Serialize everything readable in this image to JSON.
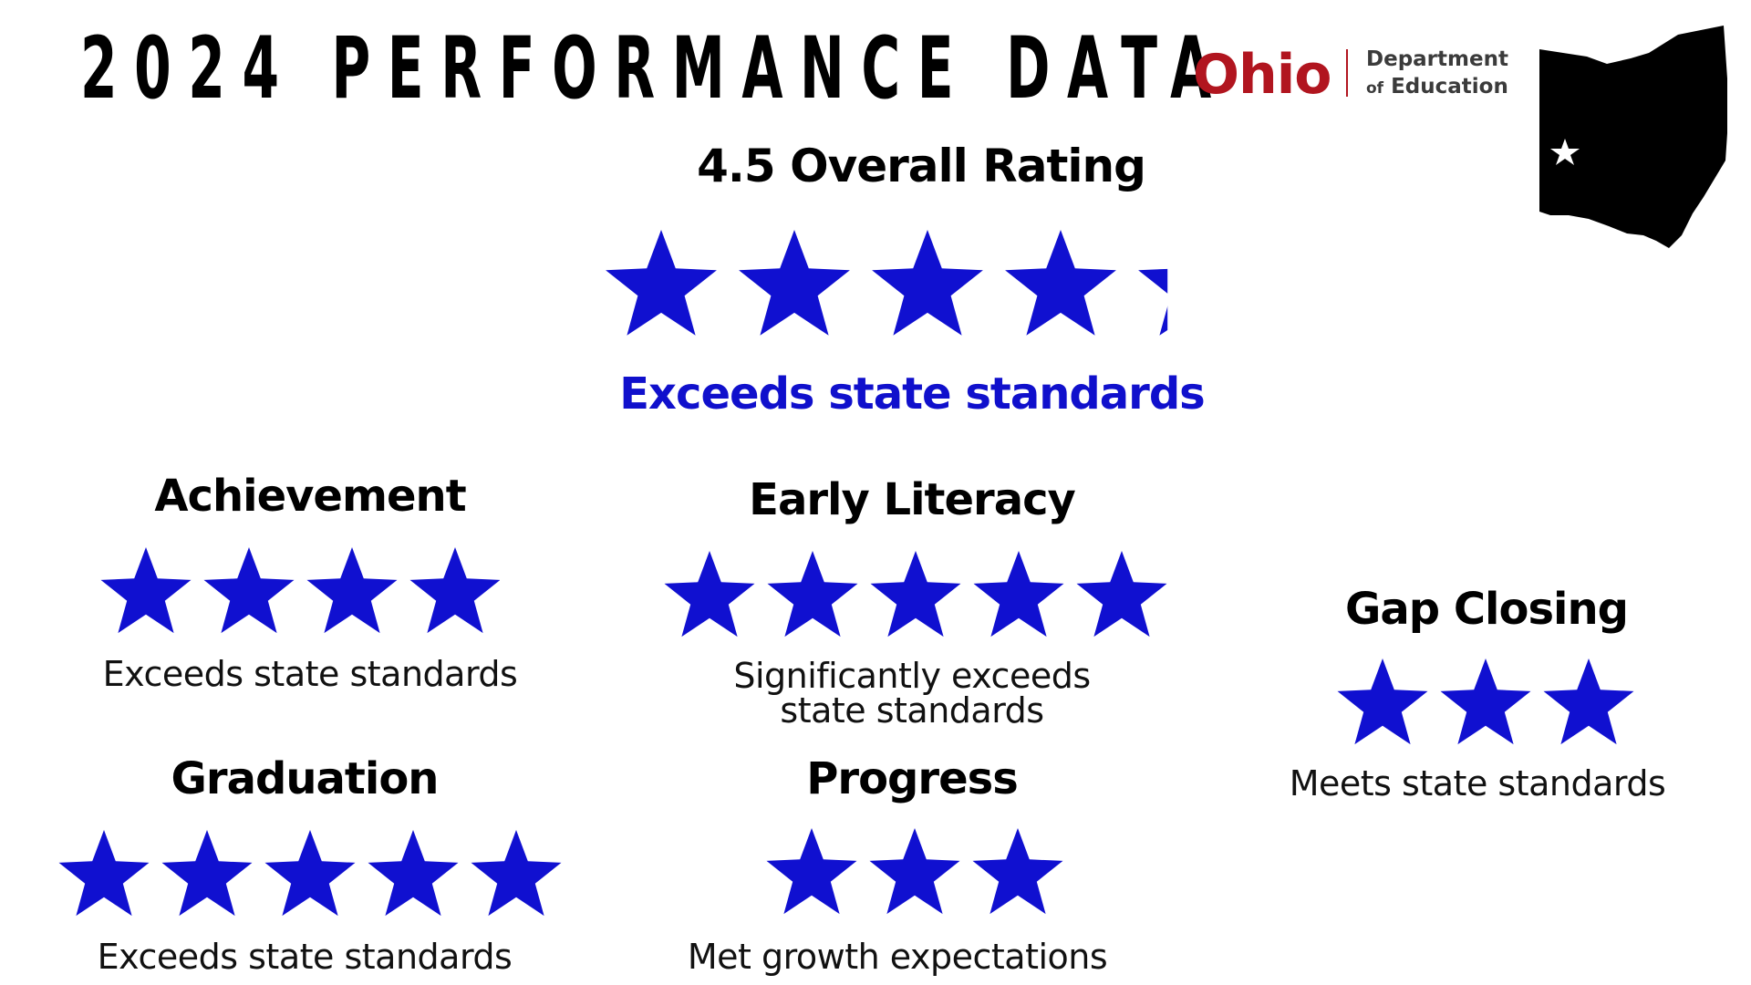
{
  "header": {
    "title": "2024 PERFORMANCE DATA"
  },
  "logo": {
    "brand": "Ohio",
    "department_line1": "Department",
    "department_line2_prefix": "of",
    "department_line2": "Education"
  },
  "map": {
    "icon": "ohio-state-map-icon",
    "marker": "star-marker-icon"
  },
  "overall": {
    "title": "4.5 Overall Rating",
    "rating": 4.5,
    "max_rating": 5,
    "description": "Exceeds state standards"
  },
  "categories": [
    {
      "id": "achievement",
      "title": "Achievement",
      "stars": 4,
      "description": "Exceeds state standards"
    },
    {
      "id": "early-literacy",
      "title": "Early Literacy",
      "stars": 5,
      "description_line1": "Significantly exceeds",
      "description_line2": "state standards"
    },
    {
      "id": "gap-closing",
      "title": "Gap Closing",
      "stars": 3,
      "description": "Meets state standards"
    },
    {
      "id": "graduation",
      "title": "Graduation",
      "stars": 5,
      "description": "Exceeds state standards"
    },
    {
      "id": "progress",
      "title": "Progress",
      "stars": 3,
      "description": "Met growth expectations"
    }
  ],
  "colors": {
    "star": "#1010d0",
    "accent_text": "#1010cc",
    "ohio_red": "#b1151f",
    "map": "#000000"
  }
}
